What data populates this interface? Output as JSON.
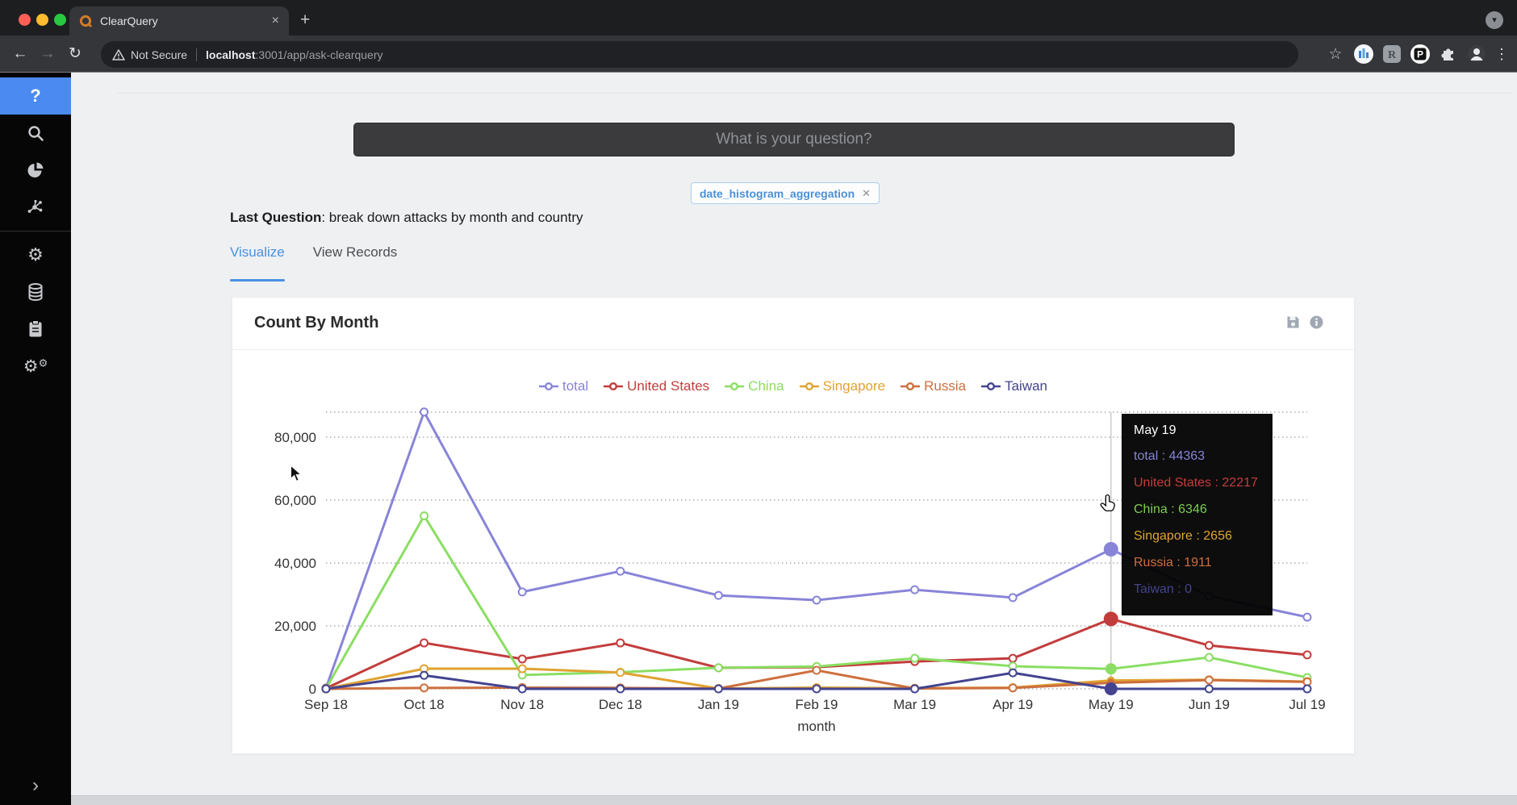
{
  "browser": {
    "tab_title": "ClearQuery",
    "close_tab": "×",
    "new_tab": "+",
    "tab_search_glyph": "▾",
    "back": "←",
    "forward": "→",
    "reload": "↻",
    "security_label": "Not Secure",
    "url_host": "localhost",
    "url_path": ":3001/app/ask-clearquery",
    "bookmark_star": "☆",
    "ext_r_label": "R",
    "ext_p_label": "P",
    "menu_dots": "⋮"
  },
  "sidebar": {
    "active_glyph": "?",
    "items": [
      "ask-question",
      "search",
      "pie-chart",
      "network",
      "settings",
      "database",
      "clipboard",
      "services"
    ],
    "gear_glyph": "⚙",
    "expand_glyph": "›"
  },
  "page": {
    "question_placeholder": "What is your question?",
    "tag_label": "date_histogram_aggregation",
    "tag_close": "✕",
    "last_question_label": "Last Question",
    "last_question_text": ": break down attacks by month and country",
    "tab_visualize": "Visualize",
    "tab_view_records": "View Records"
  },
  "card": {
    "title": "Count By Month"
  },
  "tooltip": {
    "title": "May 19",
    "separator": " : ",
    "rows": [
      {
        "label": "total",
        "value": "44363",
        "color": "#8884d8"
      },
      {
        "label": "United States",
        "value": "22217",
        "color": "#c33c3c"
      },
      {
        "label": "China",
        "value": "6346",
        "color": "#7ccc52"
      },
      {
        "label": "Singapore",
        "value": "2656",
        "color": "#dfa330"
      },
      {
        "label": "Russia",
        "value": "1911",
        "color": "#cd6f3d"
      },
      {
        "label": "Taiwan",
        "value": "0",
        "color": "#434390"
      }
    ]
  },
  "chart_data": {
    "type": "line",
    "title": "Count By Month",
    "xlabel": "month",
    "ylabel": "",
    "categories": [
      "Sep 18",
      "Oct 18",
      "Nov 18",
      "Dec 18",
      "Jan 19",
      "Feb 19",
      "Mar 19",
      "Apr 19",
      "May 19",
      "Jun 19",
      "Jul 19"
    ],
    "series": [
      {
        "name": "total",
        "color": "#8884d8",
        "active_r": 9,
        "values": [
          300,
          88000,
          30800,
          37400,
          29700,
          28200,
          31500,
          29000,
          44363,
          29500,
          22800
        ]
      },
      {
        "name": "United States",
        "color": "#c33c3c",
        "active_r": 9,
        "values": [
          200,
          14600,
          9500,
          14600,
          6700,
          6900,
          8700,
          9700,
          22217,
          13800,
          10800
        ]
      },
      {
        "name": "China",
        "color": "#8ade63",
        "active_r": 7,
        "values": [
          100,
          55000,
          4400,
          5300,
          6700,
          7100,
          9700,
          7200,
          6346,
          10000,
          3600
        ]
      },
      {
        "name": "Singapore",
        "color": "#dfa330",
        "active_r": 5,
        "values": [
          0,
          6400,
          6400,
          5200,
          100,
          400,
          200,
          400,
          2656,
          2900,
          2300
        ]
      },
      {
        "name": "Russia",
        "color": "#cd6f3d",
        "active_r": 5,
        "values": [
          0,
          300,
          400,
          300,
          100,
          5900,
          100,
          300,
          1911,
          2800,
          2200
        ]
      },
      {
        "name": "Taiwan",
        "color": "#434390",
        "active_r": 8,
        "values": [
          0,
          4300,
          0,
          0,
          0,
          0,
          0,
          5100,
          0,
          0,
          0
        ]
      }
    ],
    "yticks": [
      0,
      20000,
      40000,
      60000,
      80000
    ],
    "ytick_labels": [
      "0",
      "20,000",
      "40,000",
      "60,000",
      "80,000"
    ],
    "ylim": [
      0,
      88000
    ],
    "grid": "horizontal-dotted",
    "legend_position": "top-center",
    "hover_index": 8
  }
}
